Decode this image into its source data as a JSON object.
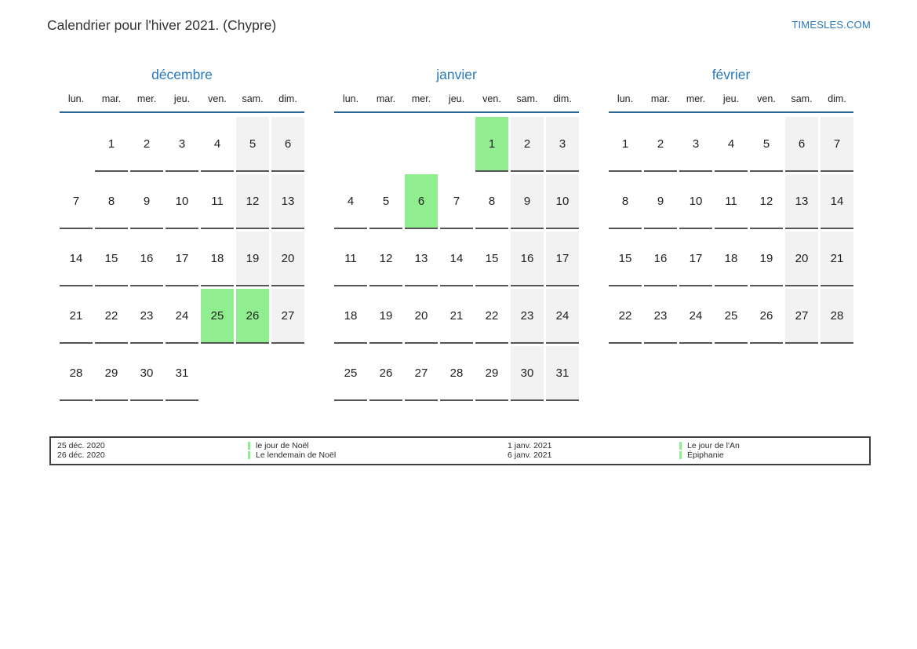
{
  "page": {
    "title": "Calendrier pour l'hiver 2021. (Chypre)",
    "site_link": "TIMESLES.COM"
  },
  "colors": {
    "accent_blue": "#2878be",
    "header_line_blue": "#2e6695",
    "holiday_green": "#90ee90",
    "weekend_gray": "#f2f2f2",
    "cell_underline": "#555555"
  },
  "weekday_headers": [
    "lun.",
    "mar.",
    "mer.",
    "jeu.",
    "ven.",
    "sam.",
    "dim."
  ],
  "months": [
    {
      "name": "décembre",
      "holidays": [
        25,
        26
      ],
      "weeks": [
        [
          "",
          "1",
          "2",
          "3",
          "4",
          "5",
          "6"
        ],
        [
          "7",
          "8",
          "9",
          "10",
          "11",
          "12",
          "13"
        ],
        [
          "14",
          "15",
          "16",
          "17",
          "18",
          "19",
          "20"
        ],
        [
          "21",
          "22",
          "23",
          "24",
          "25",
          "26",
          "27"
        ],
        [
          "28",
          "29",
          "30",
          "31",
          "",
          "",
          ""
        ]
      ]
    },
    {
      "name": "janvier",
      "holidays": [
        1,
        6
      ],
      "weeks": [
        [
          "",
          "",
          "",
          "",
          "1",
          "2",
          "3"
        ],
        [
          "4",
          "5",
          "6",
          "7",
          "8",
          "9",
          "10"
        ],
        [
          "11",
          "12",
          "13",
          "14",
          "15",
          "16",
          "17"
        ],
        [
          "18",
          "19",
          "20",
          "21",
          "22",
          "23",
          "24"
        ],
        [
          "25",
          "26",
          "27",
          "28",
          "29",
          "30",
          "31"
        ]
      ]
    },
    {
      "name": "février",
      "holidays": [],
      "weeks": [
        [
          "1",
          "2",
          "3",
          "4",
          "5",
          "6",
          "7"
        ],
        [
          "8",
          "9",
          "10",
          "11",
          "12",
          "13",
          "14"
        ],
        [
          "15",
          "16",
          "17",
          "18",
          "19",
          "20",
          "21"
        ],
        [
          "22",
          "23",
          "24",
          "25",
          "26",
          "27",
          "28"
        ]
      ]
    }
  ],
  "legend": {
    "groups": [
      {
        "entries": [
          {
            "date": "25 déc. 2020",
            "name": "le jour de Noël"
          },
          {
            "date": "26 déc. 2020",
            "name": "Le lendemain de Noël"
          }
        ]
      },
      {
        "entries": [
          {
            "date": "1 janv. 2021",
            "name": "Le jour de l'An"
          },
          {
            "date": "6 janv. 2021",
            "name": "Épiphanie"
          }
        ]
      }
    ]
  }
}
